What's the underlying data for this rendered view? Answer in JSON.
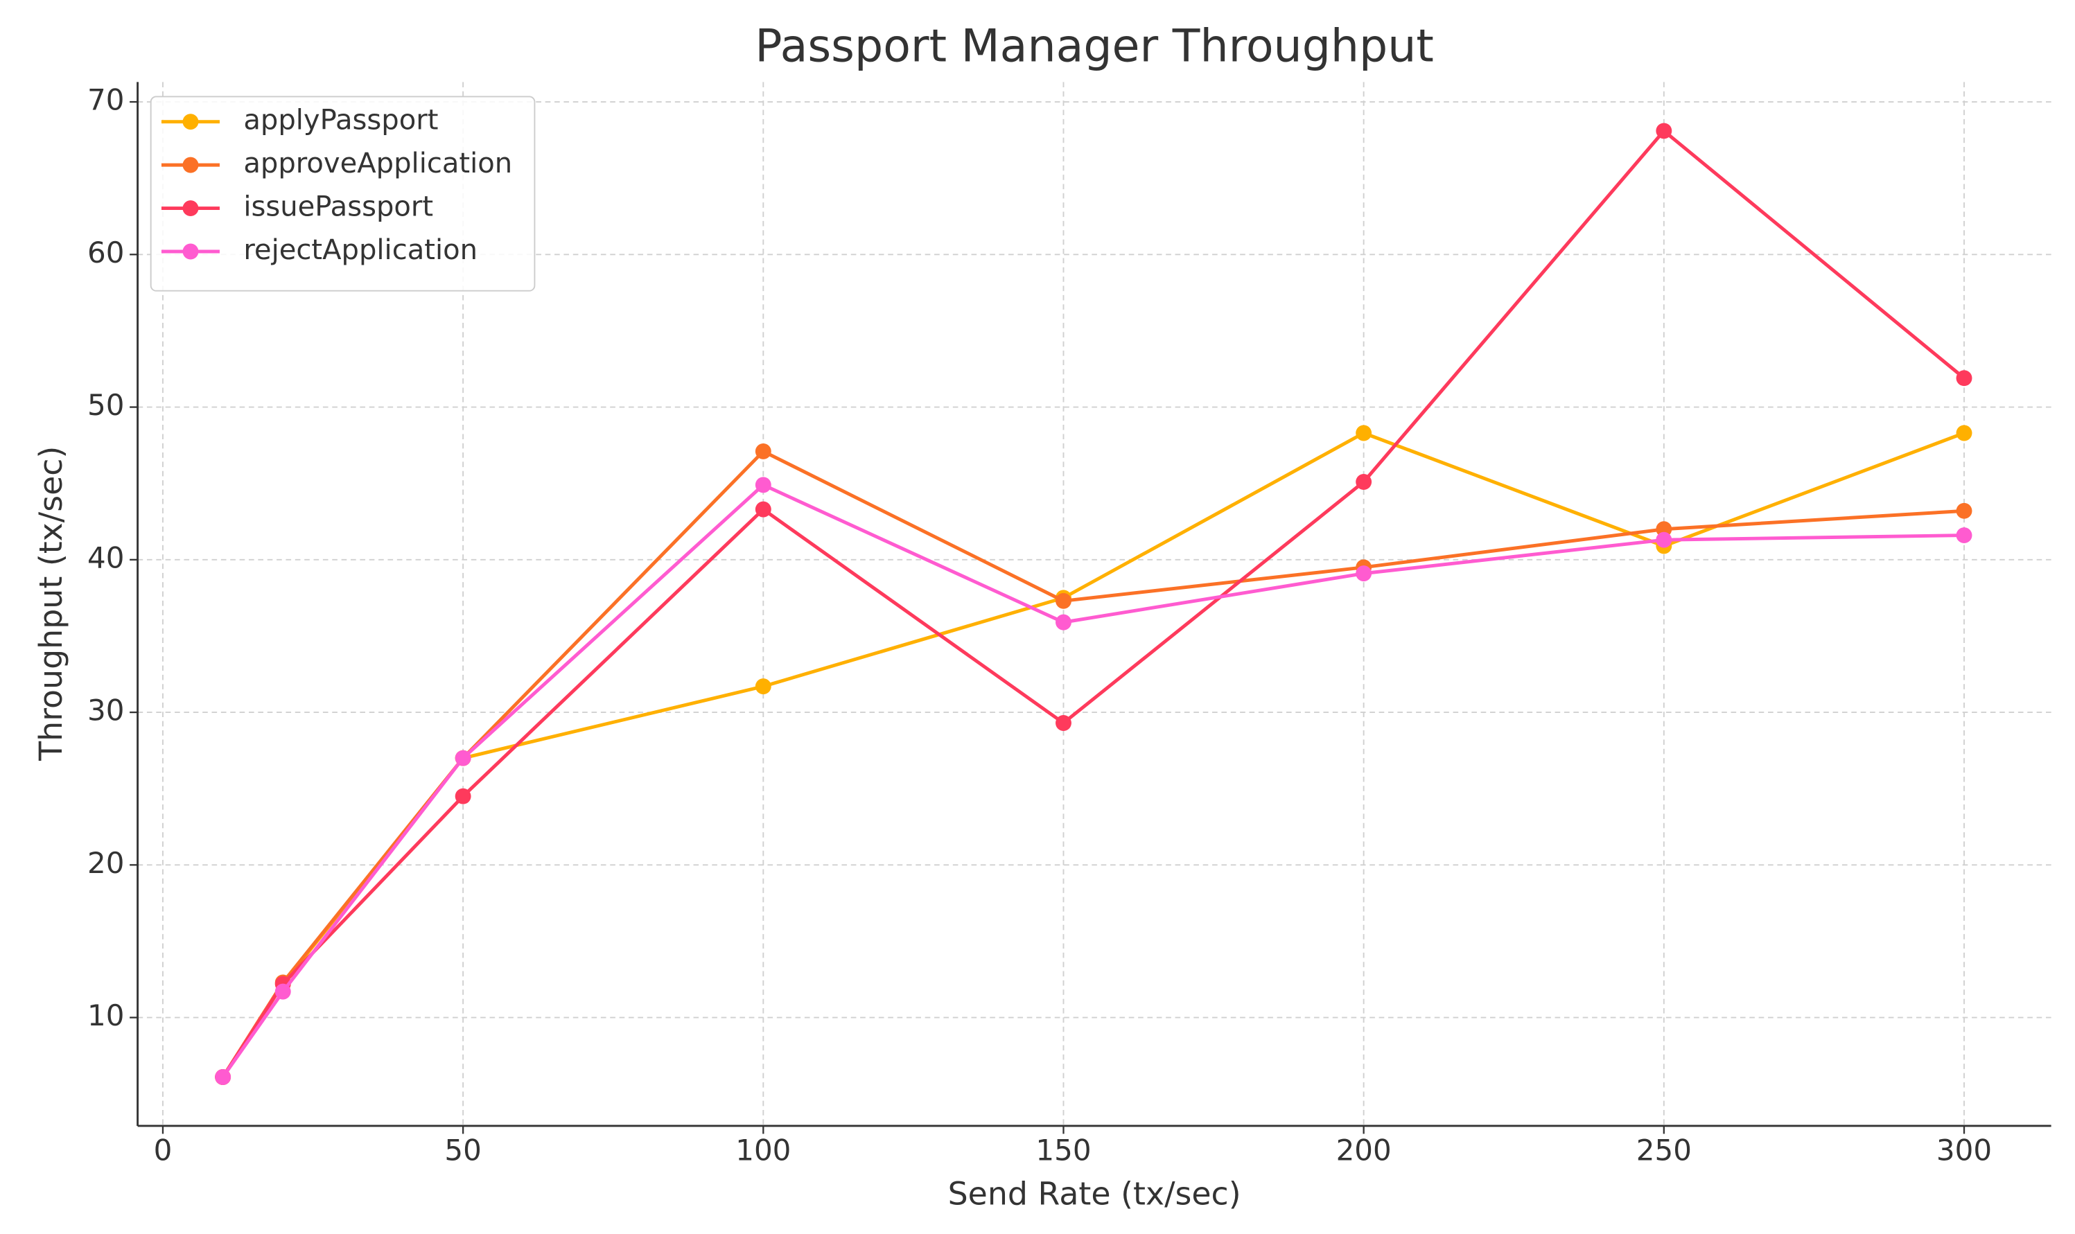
{
  "chart_data": {
    "type": "line",
    "title": "Passport Manager Throughput",
    "x_label": "Send Rate (tx/sec)",
    "y_label": "Throughput (tx/sec)",
    "x": [
      10,
      20,
      50,
      100,
      150,
      200,
      250,
      300
    ],
    "series": [
      {
        "name": "applyPassport",
        "color": "#ffb000",
        "values": [
          6.1,
          12.2,
          27.0,
          31.7,
          37.5,
          48.3,
          40.9,
          48.3
        ]
      },
      {
        "name": "approveApplication",
        "color": "#fb7126",
        "values": [
          6.1,
          12.3,
          27.0,
          47.1,
          37.3,
          39.5,
          42.0,
          43.2
        ]
      },
      {
        "name": "issuePassport",
        "color": "#fe3a5c",
        "values": [
          6.1,
          12.2,
          24.5,
          43.3,
          29.3,
          45.1,
          68.1,
          51.9
        ]
      },
      {
        "name": "rejectApplication",
        "color": "#ff5bd0",
        "values": [
          6.1,
          11.7,
          27.0,
          44.9,
          35.9,
          39.1,
          41.3,
          41.6
        ]
      }
    ],
    "xlim": [
      -4.2,
      314.5
    ],
    "ylim": [
      2.9,
      71.3
    ],
    "xticks": [
      0,
      50,
      100,
      150,
      200,
      250,
      300
    ],
    "yticks": [
      10,
      20,
      30,
      40,
      50,
      60,
      70
    ],
    "grid": true,
    "legend": "upper-left"
  }
}
